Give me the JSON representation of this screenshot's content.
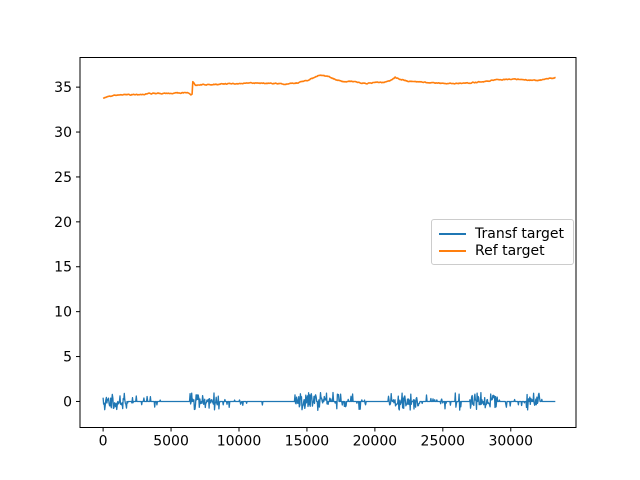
{
  "chart_data": {
    "type": "line",
    "title": "",
    "xlabel": "",
    "ylabel": "",
    "grid": false,
    "xlim": [
      -1700,
      34800
    ],
    "ylim": [
      -2.9,
      38.3
    ],
    "x_ticks": [
      0,
      5000,
      10000,
      15000,
      20000,
      25000,
      30000
    ],
    "y_ticks": [
      0,
      5,
      10,
      15,
      20,
      25,
      30,
      35
    ],
    "axis_color": "#000000",
    "legend": {
      "position": "center-right",
      "border_color": "#cccccc",
      "entries": [
        "Transf target",
        "Ref target"
      ]
    },
    "series": [
      {
        "name": "Transf target",
        "color": "#1f77b4",
        "line_style": "noise-spikes",
        "baseline": 0,
        "x_start": 0,
        "x_end": 33300,
        "sample_step": 40,
        "spike_min": 0.15,
        "spike_extra": 0.85,
        "noise_bursts": [
          [
            0,
            1800,
            0.85
          ],
          [
            1900,
            3600,
            0.25
          ],
          [
            3800,
            4200,
            0.3
          ],
          [
            6400,
            8600,
            0.85
          ],
          [
            8700,
            10800,
            0.22
          ],
          [
            10950,
            11800,
            0.3
          ],
          [
            14100,
            16500,
            0.85
          ],
          [
            16500,
            17900,
            0.5
          ],
          [
            17900,
            19400,
            0.2
          ],
          [
            21000,
            23300,
            0.85
          ],
          [
            23300,
            24400,
            0.3
          ],
          [
            24500,
            26500,
            0.2
          ],
          [
            27000,
            29000,
            0.85
          ],
          [
            29100,
            30900,
            0.25
          ],
          [
            31000,
            32300,
            0.4
          ]
        ]
      },
      {
        "name": "Ref target",
        "color": "#ff7f0e",
        "line_style": "keypoint-line",
        "sample_step": 50,
        "keypoints": [
          [
            0,
            33.8
          ],
          [
            400,
            33.95
          ],
          [
            900,
            34.1
          ],
          [
            1600,
            34.2
          ],
          [
            2400,
            34.15
          ],
          [
            3200,
            34.25
          ],
          [
            4000,
            34.3
          ],
          [
            4800,
            34.3
          ],
          [
            5600,
            34.35
          ],
          [
            6200,
            34.4
          ],
          [
            6450,
            34.15
          ],
          [
            6550,
            34.2
          ],
          [
            6600,
            35.55
          ],
          [
            6800,
            35.2
          ],
          [
            7400,
            35.3
          ],
          [
            8200,
            35.3
          ],
          [
            9000,
            35.35
          ],
          [
            10000,
            35.4
          ],
          [
            11000,
            35.45
          ],
          [
            12000,
            35.45
          ],
          [
            12800,
            35.4
          ],
          [
            13400,
            35.3
          ],
          [
            14000,
            35.4
          ],
          [
            14600,
            35.55
          ],
          [
            15300,
            35.9
          ],
          [
            16000,
            36.35
          ],
          [
            16600,
            36.15
          ],
          [
            17200,
            35.8
          ],
          [
            17800,
            35.6
          ],
          [
            18300,
            35.65
          ],
          [
            18800,
            35.5
          ],
          [
            19300,
            35.4
          ],
          [
            20000,
            35.5
          ],
          [
            20800,
            35.55
          ],
          [
            21200,
            35.8
          ],
          [
            21500,
            36.1
          ],
          [
            21800,
            35.9
          ],
          [
            22200,
            35.7
          ],
          [
            23000,
            35.6
          ],
          [
            24000,
            35.5
          ],
          [
            25000,
            35.4
          ],
          [
            26000,
            35.4
          ],
          [
            27000,
            35.5
          ],
          [
            28000,
            35.6
          ],
          [
            28700,
            35.8
          ],
          [
            29500,
            35.85
          ],
          [
            30300,
            35.9
          ],
          [
            31000,
            35.85
          ],
          [
            31700,
            35.75
          ],
          [
            32300,
            35.8
          ],
          [
            32800,
            35.95
          ],
          [
            33300,
            36.05
          ]
        ]
      }
    ]
  }
}
